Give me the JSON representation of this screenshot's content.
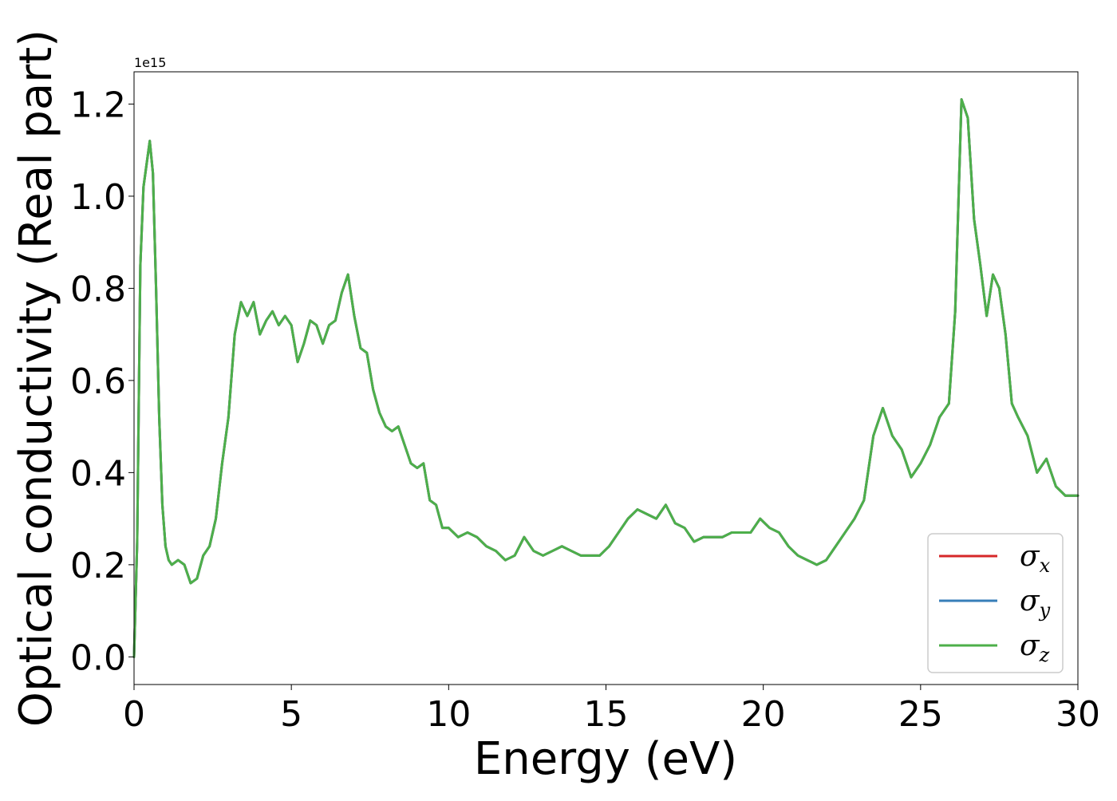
{
  "chart_data": {
    "type": "line",
    "xlabel": "Energy (eV)",
    "ylabel": "Optical conductivity (Real part)",
    "y_offset_text": "1e15",
    "y_scale_factor": 1000000000000000.0,
    "xlim": [
      0,
      30
    ],
    "ylim": [
      -0.06,
      1.27
    ],
    "x_ticks": [
      0,
      5,
      10,
      15,
      20,
      25,
      30
    ],
    "x_tick_labels": [
      "0",
      "5",
      "10",
      "15",
      "20",
      "25",
      "30"
    ],
    "y_ticks": [
      0.0,
      0.2,
      0.4,
      0.6,
      0.8,
      1.0,
      1.2
    ],
    "y_tick_labels": [
      "0.0",
      "0.2",
      "0.4",
      "0.6",
      "0.8",
      "1.0",
      "1.2"
    ],
    "grid": false,
    "legend_position": "bottom-right",
    "x": [
      0,
      0.1,
      0.2,
      0.3,
      0.4,
      0.5,
      0.6,
      0.7,
      0.8,
      0.9,
      1.0,
      1.1,
      1.2,
      1.4,
      1.6,
      1.8,
      2.0,
      2.2,
      2.4,
      2.6,
      2.8,
      3.0,
      3.2,
      3.4,
      3.6,
      3.8,
      4.0,
      4.2,
      4.4,
      4.6,
      4.8,
      5.0,
      5.2,
      5.4,
      5.6,
      5.8,
      6.0,
      6.2,
      6.4,
      6.6,
      6.8,
      7.0,
      7.2,
      7.4,
      7.6,
      7.8,
      8.0,
      8.2,
      8.4,
      8.6,
      8.8,
      9.0,
      9.2,
      9.4,
      9.6,
      9.8,
      10.0,
      10.3,
      10.6,
      10.9,
      11.2,
      11.5,
      11.8,
      12.1,
      12.4,
      12.7,
      13.0,
      13.3,
      13.6,
      13.9,
      14.2,
      14.5,
      14.8,
      15.1,
      15.4,
      15.7,
      16.0,
      16.3,
      16.6,
      16.9,
      17.2,
      17.5,
      17.8,
      18.1,
      18.4,
      18.7,
      19.0,
      19.3,
      19.6,
      19.9,
      20.2,
      20.5,
      20.8,
      21.1,
      21.4,
      21.7,
      22.0,
      22.3,
      22.6,
      22.9,
      23.2,
      23.5,
      23.8,
      24.1,
      24.4,
      24.7,
      25.0,
      25.3,
      25.6,
      25.9,
      26.1,
      26.3,
      26.5,
      26.7,
      26.9,
      27.1,
      27.3,
      27.5,
      27.7,
      27.9,
      28.1,
      28.4,
      28.7,
      29.0,
      29.3,
      29.6,
      30.0
    ],
    "series": [
      {
        "name": "σx",
        "color": "#d62728",
        "y": [
          0.0,
          0.25,
          0.85,
          1.02,
          1.07,
          1.12,
          1.05,
          0.8,
          0.52,
          0.33,
          0.24,
          0.21,
          0.2,
          0.21,
          0.2,
          0.16,
          0.17,
          0.22,
          0.24,
          0.3,
          0.42,
          0.52,
          0.7,
          0.77,
          0.74,
          0.77,
          0.7,
          0.73,
          0.75,
          0.72,
          0.74,
          0.72,
          0.64,
          0.68,
          0.73,
          0.72,
          0.68,
          0.72,
          0.73,
          0.79,
          0.83,
          0.74,
          0.67,
          0.66,
          0.58,
          0.53,
          0.5,
          0.49,
          0.5,
          0.46,
          0.42,
          0.41,
          0.42,
          0.34,
          0.33,
          0.28,
          0.28,
          0.26,
          0.27,
          0.26,
          0.24,
          0.23,
          0.21,
          0.22,
          0.26,
          0.23,
          0.22,
          0.23,
          0.24,
          0.23,
          0.22,
          0.22,
          0.22,
          0.24,
          0.27,
          0.3,
          0.32,
          0.31,
          0.3,
          0.33,
          0.29,
          0.28,
          0.25,
          0.26,
          0.26,
          0.26,
          0.27,
          0.27,
          0.27,
          0.3,
          0.28,
          0.27,
          0.24,
          0.22,
          0.21,
          0.2,
          0.21,
          0.24,
          0.27,
          0.3,
          0.34,
          0.48,
          0.54,
          0.48,
          0.45,
          0.39,
          0.42,
          0.46,
          0.52,
          0.55,
          0.75,
          1.21,
          1.17,
          0.95,
          0.85,
          0.74,
          0.83,
          0.8,
          0.7,
          0.55,
          0.52,
          0.48,
          0.4,
          0.43,
          0.37,
          0.35,
          0.35
        ]
      },
      {
        "name": "σy",
        "color": "#377eb8",
        "y": [
          0.0,
          0.25,
          0.85,
          1.02,
          1.07,
          1.12,
          1.05,
          0.8,
          0.52,
          0.33,
          0.24,
          0.21,
          0.2,
          0.21,
          0.2,
          0.16,
          0.17,
          0.22,
          0.24,
          0.3,
          0.42,
          0.52,
          0.7,
          0.77,
          0.74,
          0.77,
          0.7,
          0.73,
          0.75,
          0.72,
          0.74,
          0.72,
          0.64,
          0.68,
          0.73,
          0.72,
          0.68,
          0.72,
          0.73,
          0.79,
          0.83,
          0.74,
          0.67,
          0.66,
          0.58,
          0.53,
          0.5,
          0.49,
          0.5,
          0.46,
          0.42,
          0.41,
          0.42,
          0.34,
          0.33,
          0.28,
          0.28,
          0.26,
          0.27,
          0.26,
          0.24,
          0.23,
          0.21,
          0.22,
          0.26,
          0.23,
          0.22,
          0.23,
          0.24,
          0.23,
          0.22,
          0.22,
          0.22,
          0.24,
          0.27,
          0.3,
          0.32,
          0.31,
          0.3,
          0.33,
          0.29,
          0.28,
          0.25,
          0.26,
          0.26,
          0.26,
          0.27,
          0.27,
          0.27,
          0.3,
          0.28,
          0.27,
          0.24,
          0.22,
          0.21,
          0.2,
          0.21,
          0.24,
          0.27,
          0.3,
          0.34,
          0.48,
          0.54,
          0.48,
          0.45,
          0.39,
          0.42,
          0.46,
          0.52,
          0.55,
          0.75,
          1.21,
          1.17,
          0.95,
          0.85,
          0.74,
          0.83,
          0.8,
          0.7,
          0.55,
          0.52,
          0.48,
          0.4,
          0.43,
          0.37,
          0.35,
          0.35
        ]
      },
      {
        "name": "σz",
        "color": "#4daf4a",
        "y": [
          0.0,
          0.25,
          0.85,
          1.02,
          1.07,
          1.12,
          1.05,
          0.8,
          0.52,
          0.33,
          0.24,
          0.21,
          0.2,
          0.21,
          0.2,
          0.16,
          0.17,
          0.22,
          0.24,
          0.3,
          0.42,
          0.52,
          0.7,
          0.77,
          0.74,
          0.77,
          0.7,
          0.73,
          0.75,
          0.72,
          0.74,
          0.72,
          0.64,
          0.68,
          0.73,
          0.72,
          0.68,
          0.72,
          0.73,
          0.79,
          0.83,
          0.74,
          0.67,
          0.66,
          0.58,
          0.53,
          0.5,
          0.49,
          0.5,
          0.46,
          0.42,
          0.41,
          0.42,
          0.34,
          0.33,
          0.28,
          0.28,
          0.26,
          0.27,
          0.26,
          0.24,
          0.23,
          0.21,
          0.22,
          0.26,
          0.23,
          0.22,
          0.23,
          0.24,
          0.23,
          0.22,
          0.22,
          0.22,
          0.24,
          0.27,
          0.3,
          0.32,
          0.31,
          0.3,
          0.33,
          0.29,
          0.28,
          0.25,
          0.26,
          0.26,
          0.26,
          0.27,
          0.27,
          0.27,
          0.3,
          0.28,
          0.27,
          0.24,
          0.22,
          0.21,
          0.2,
          0.21,
          0.24,
          0.27,
          0.3,
          0.34,
          0.48,
          0.54,
          0.48,
          0.45,
          0.39,
          0.42,
          0.46,
          0.52,
          0.55,
          0.75,
          1.21,
          1.17,
          0.95,
          0.85,
          0.74,
          0.83,
          0.8,
          0.7,
          0.55,
          0.52,
          0.48,
          0.4,
          0.43,
          0.37,
          0.35,
          0.35
        ]
      }
    ]
  }
}
